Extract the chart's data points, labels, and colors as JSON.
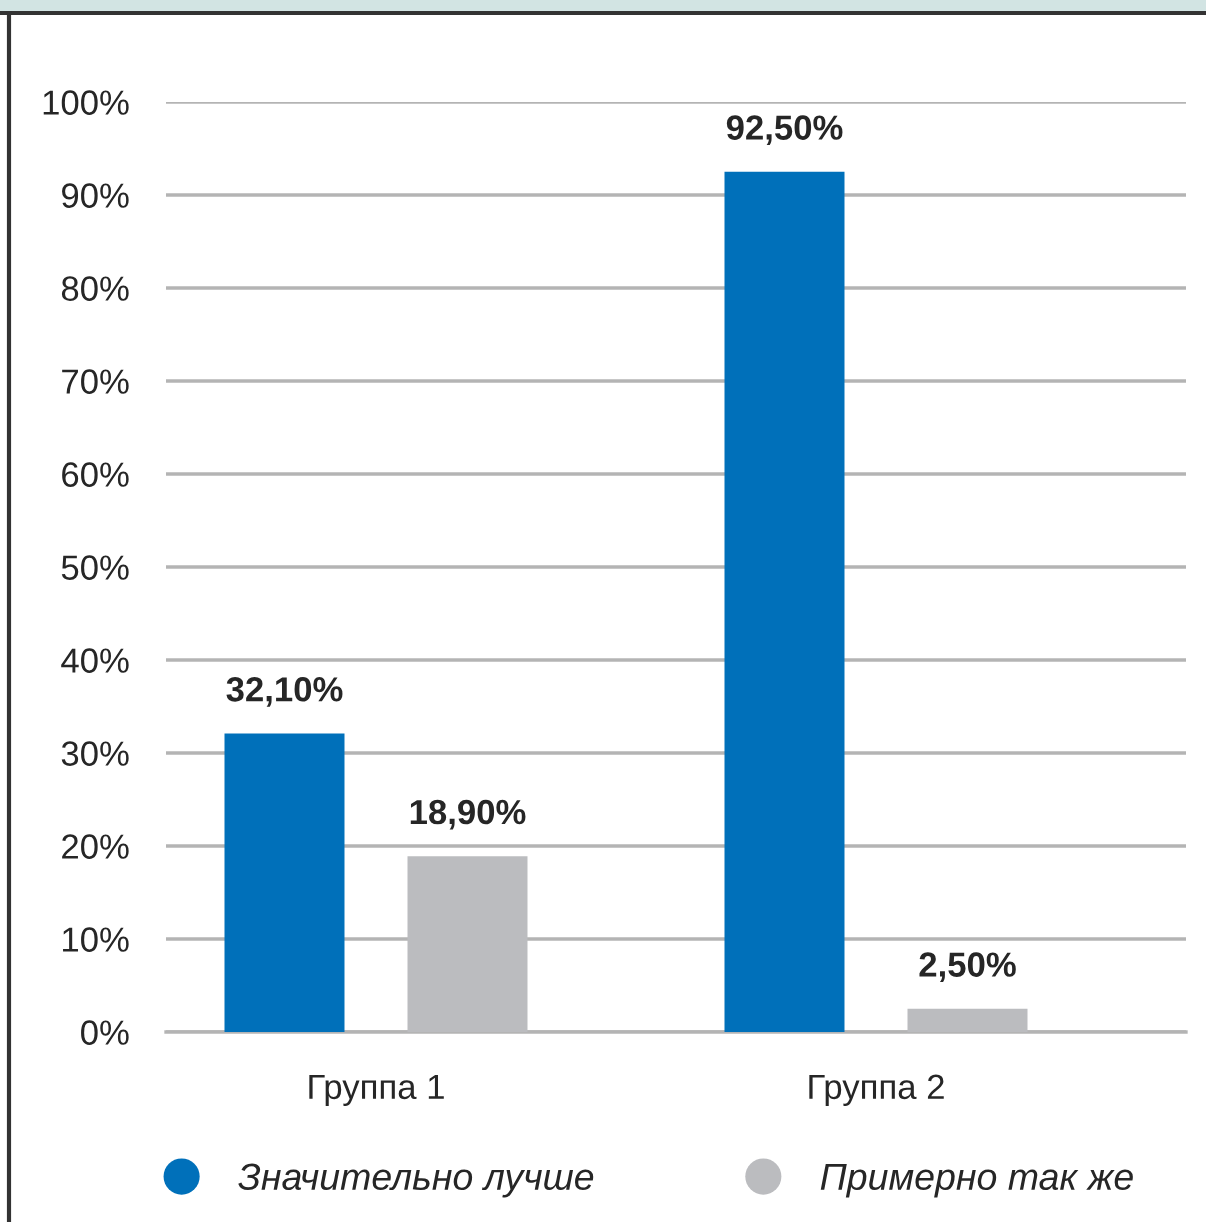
{
  "chart_data": {
    "type": "bar",
    "categories": [
      "Группа 1",
      "Группа 2"
    ],
    "series": [
      {
        "name": "Значительно лучше",
        "color": "#0070ba",
        "values": [
          32.1,
          92.5
        ],
        "value_labels": [
          "32,10%",
          "92,50%"
        ]
      },
      {
        "name": "Примерно так же",
        "color": "#bbbcbf",
        "values": [
          18.9,
          2.5
        ],
        "value_labels": [
          "18,90%",
          "2,50%"
        ]
      }
    ],
    "ylim": [
      0,
      100
    ],
    "yticks": [
      {
        "value": 0,
        "label": "0%"
      },
      {
        "value": 10,
        "label": "10%"
      },
      {
        "value": 20,
        "label": "20%"
      },
      {
        "value": 30,
        "label": "30%"
      },
      {
        "value": 40,
        "label": "40%"
      },
      {
        "value": 50,
        "label": "50%"
      },
      {
        "value": 60,
        "label": "60%"
      },
      {
        "value": 70,
        "label": "70%"
      },
      {
        "value": 80,
        "label": "80%"
      },
      {
        "value": 90,
        "label": "90%"
      },
      {
        "value": 100,
        "label": "100%"
      }
    ],
    "grid": "y",
    "legend": "bottom",
    "marker": "circle"
  }
}
